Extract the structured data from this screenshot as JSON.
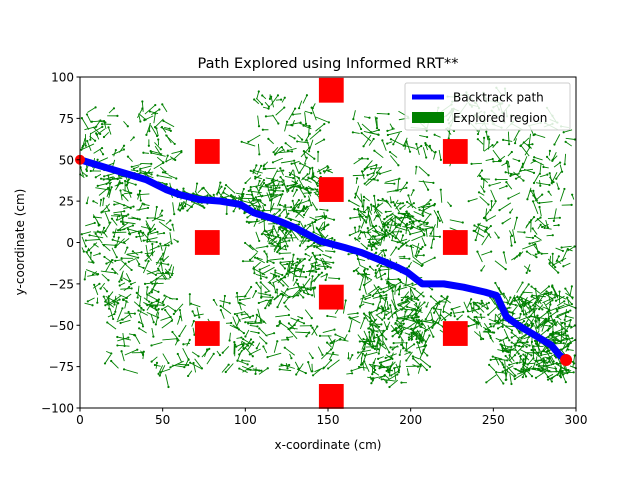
{
  "chart_data": {
    "type": "line",
    "title": "Path Explored using Informed RRT**",
    "xlabel": "x-coordinate (cm)",
    "ylabel": "y-coordinate (cm)",
    "xlim": [
      0,
      300
    ],
    "ylim": [
      -100,
      100
    ],
    "xticks": [
      0,
      50,
      100,
      150,
      200,
      250,
      300
    ],
    "yticks": [
      -100,
      -75,
      -50,
      -25,
      0,
      25,
      50,
      75,
      100
    ],
    "grid": false,
    "legend_position": "top-right",
    "colors": {
      "path": "#0000ff",
      "explored": "#008000",
      "obstacle": "#ff0000",
      "start": "#ff0000",
      "goal": "#ff0000"
    },
    "series": [
      {
        "name": "Backtrack path",
        "x": [
          0,
          10,
          20,
          30,
          40,
          52,
          60,
          72,
          85,
          97,
          105,
          118,
          130,
          145,
          160,
          170,
          180,
          192,
          198,
          207,
          220,
          232,
          245,
          252,
          258,
          265,
          275,
          285,
          290,
          294
        ],
        "y": [
          50,
          47,
          44,
          41,
          38,
          32,
          29,
          26,
          25,
          23,
          18,
          14,
          9,
          1,
          -3,
          -6,
          -10,
          -15,
          -18,
          -25,
          -25,
          -27,
          -30,
          -32,
          -45,
          -50,
          -56,
          -62,
          -68,
          -71
        ]
      },
      {
        "name": "Explored region"
      }
    ],
    "obstacles": [
      {
        "x": 77,
        "y": 55
      },
      {
        "x": 77,
        "y": 0
      },
      {
        "x": 77,
        "y": -55
      },
      {
        "x": 152,
        "y": 92
      },
      {
        "x": 152,
        "y": 32
      },
      {
        "x": 152,
        "y": -33
      },
      {
        "x": 152,
        "y": -93
      },
      {
        "x": 227,
        "y": 55
      },
      {
        "x": 227,
        "y": 0
      },
      {
        "x": 227,
        "y": -55
      }
    ],
    "obstacle_size": 15,
    "start_point": {
      "x": 0,
      "y": 50
    },
    "goal_point": {
      "x": 294,
      "y": -71
    }
  }
}
